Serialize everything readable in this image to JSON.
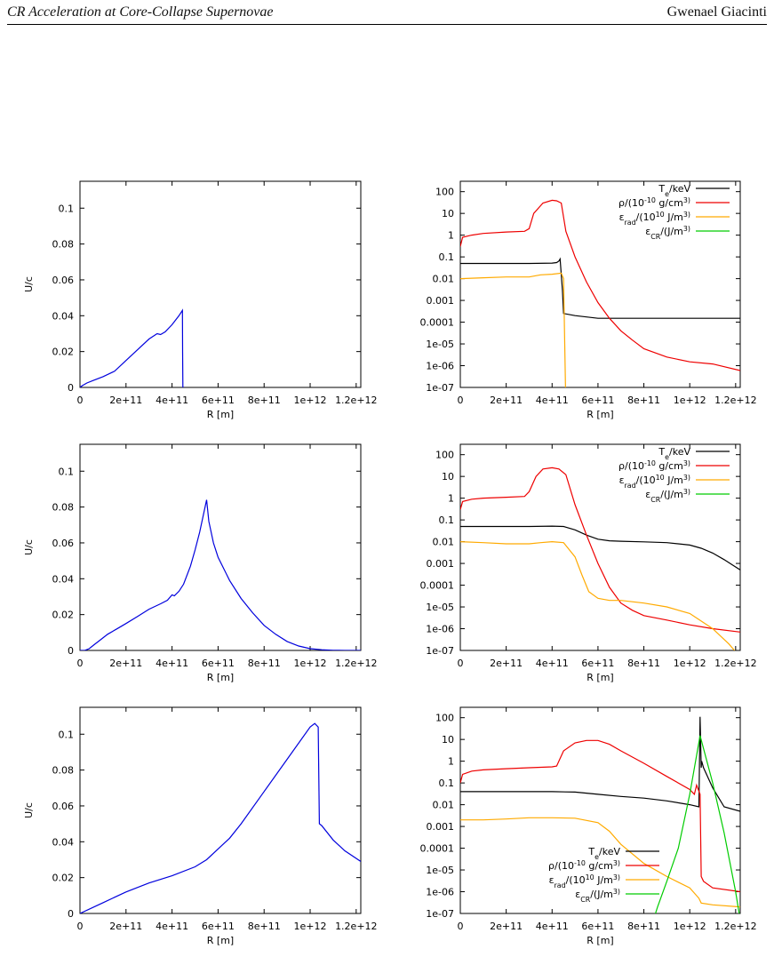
{
  "header": {
    "left": "CR Acceleration at Core-Collapse Supernovae",
    "right": "Gwenael Giacinti"
  },
  "chart_data": [
    {
      "type": "line",
      "xlabel": "R [m]",
      "ylabel": "U/c",
      "xlim": [
        0,
        1220000000000.0
      ],
      "ylim": [
        0,
        0.115
      ],
      "xticks": [
        "0",
        "2e+11",
        "4e+11",
        "6e+11",
        "8e+11",
        "1e+12",
        "1.2e+12"
      ],
      "yticks": [
        "0",
        "0.02",
        "0.04",
        "0.06",
        "0.08",
        "0.1"
      ],
      "series": [
        {
          "color": "#0000dd",
          "x": [
            0,
            10000000000.0,
            30000000000.0,
            60000000000.0,
            100000000000.0,
            150000000000.0,
            200000000000.0,
            250000000000.0,
            300000000000.0,
            335000000000.0,
            350000000000.0,
            370000000000.0,
            400000000000.0,
            430000000000.0,
            445000000000.0,
            446000000000.0,
            447000000000.0,
            450000000000.0
          ],
          "y": [
            0,
            0.001,
            0.0025,
            0.004,
            0.006,
            0.009,
            0.015,
            0.021,
            0.027,
            0.03,
            0.0295,
            0.031,
            0.035,
            0.04,
            0.043,
            0.02,
            0.0,
            0.0
          ]
        }
      ]
    },
    {
      "type": "line",
      "xlabel": "R [m]",
      "xlim": [
        0,
        1220000000000.0
      ],
      "yscale": "log",
      "ylim": [
        1e-07,
        300
      ],
      "xticks": [
        "0",
        "2e+11",
        "4e+11",
        "6e+11",
        "8e+11",
        "1e+12",
        "1.2e+12"
      ],
      "yticks": [
        "1e-07",
        "1e-06",
        "1e-05",
        "0.0001",
        "0.001",
        "0.01",
        "0.1",
        "1",
        "10",
        "100"
      ],
      "legend_position": "top-right",
      "series": [
        {
          "name": "T_e/keV",
          "color": "#000000",
          "x": [
            0,
            100000000000.0,
            200000000000.0,
            300000000000.0,
            400000000000.0,
            420000000000.0,
            430000000000.0,
            435000000000.0,
            445000000000.0,
            450000000000.0,
            500000000000.0,
            600000000000.0,
            800000000000.0,
            1000000000000.0,
            1220000000000.0
          ],
          "y": [
            0.05,
            0.05,
            0.05,
            0.05,
            0.052,
            0.055,
            0.065,
            0.08,
            0.003,
            0.00025,
            0.0002,
            0.00015,
            0.00015,
            0.00015,
            0.00015
          ]
        },
        {
          "name": "ρ/(10^-10 g/cm^3)",
          "color": "#ee0000",
          "x": [
            0,
            10000000000.0,
            50000000000.0,
            100000000000.0,
            200000000000.0,
            280000000000.0,
            300000000000.0,
            320000000000.0,
            360000000000.0,
            400000000000.0,
            420000000000.0,
            440000000000.0,
            460000000000.0,
            500000000000.0,
            550000000000.0,
            600000000000.0,
            650000000000.0,
            700000000000.0,
            750000000000.0,
            800000000000.0,
            900000000000.0,
            1000000000000.0,
            1100000000000.0,
            1220000000000.0
          ],
          "y": [
            0.3,
            0.8,
            1.0,
            1.2,
            1.4,
            1.5,
            2.0,
            10,
            30,
            40,
            38,
            30,
            1.5,
            0.1,
            0.007,
            0.0008,
            0.00015,
            4e-05,
            1.5e-05,
            6e-06,
            2.5e-06,
            1.5e-06,
            1.2e-06,
            6e-07
          ]
        },
        {
          "name": "ε_rad/(10^10 J/m^3)",
          "color": "#ffaa00",
          "x": [
            0,
            100000000000.0,
            200000000000.0,
            300000000000.0,
            350000000000.0,
            400000000000.0,
            440000000000.0,
            450000000000.0,
            455000000000.0,
            460000000000.0
          ],
          "y": [
            0.01,
            0.011,
            0.012,
            0.012,
            0.015,
            0.016,
            0.018,
            0.01,
            1e-05,
            1e-08
          ]
        },
        {
          "name": "ε_CR/(J/m^3)",
          "color": "#00cc00",
          "x": [],
          "y": []
        }
      ]
    },
    {
      "type": "line",
      "xlabel": "R [m]",
      "ylabel": "U/c",
      "xlim": [
        0,
        1220000000000.0
      ],
      "ylim": [
        0,
        0.115
      ],
      "xticks": [
        "0",
        "2e+11",
        "4e+11",
        "6e+11",
        "8e+11",
        "1e+12",
        "1.2e+12"
      ],
      "yticks": [
        "0",
        "0.02",
        "0.04",
        "0.06",
        "0.08",
        "0.1"
      ],
      "series": [
        {
          "color": "#0000dd",
          "x": [
            0,
            20000000000.0,
            40000000000.0,
            60000000000.0,
            80000000000.0,
            120000000000.0,
            160000000000.0,
            200000000000.0,
            250000000000.0,
            300000000000.0,
            350000000000.0,
            380000000000.0,
            400000000000.0,
            410000000000.0,
            430000000000.0,
            450000000000.0,
            480000000000.0,
            500000000000.0,
            520000000000.0,
            540000000000.0,
            550000000000.0,
            560000000000.0,
            580000000000.0,
            600000000000.0,
            650000000000.0,
            700000000000.0,
            750000000000.0,
            800000000000.0,
            850000000000.0,
            900000000000.0,
            950000000000.0,
            1000000000000.0,
            1050000000000.0,
            1100000000000.0,
            1150000000000.0,
            1220000000000.0
          ],
          "y": [
            0,
            0,
            0.001,
            0.003,
            0.005,
            0.009,
            0.012,
            0.015,
            0.019,
            0.023,
            0.026,
            0.028,
            0.031,
            0.0305,
            0.033,
            0.037,
            0.047,
            0.056,
            0.066,
            0.078,
            0.084,
            0.072,
            0.06,
            0.052,
            0.039,
            0.029,
            0.021,
            0.014,
            0.009,
            0.005,
            0.0025,
            0.001,
            0.0004,
            0.0001,
            0.0,
            0.0
          ]
        }
      ]
    },
    {
      "type": "line",
      "xlabel": "R [m]",
      "xlim": [
        0,
        1220000000000.0
      ],
      "yscale": "log",
      "ylim": [
        1e-07,
        300
      ],
      "xticks": [
        "0",
        "2e+11",
        "4e+11",
        "6e+11",
        "8e+11",
        "1e+12",
        "1.2e+12"
      ],
      "yticks": [
        "1e-07",
        "1e-06",
        "1e-05",
        "0.0001",
        "0.001",
        "0.01",
        "0.1",
        "1",
        "10",
        "100"
      ],
      "legend_position": "top-right",
      "series": [
        {
          "name": "T_e/keV",
          "color": "#000000",
          "x": [
            0,
            100000000000.0,
            200000000000.0,
            300000000000.0,
            400000000000.0,
            450000000000.0,
            500000000000.0,
            550000000000.0,
            600000000000.0,
            650000000000.0,
            700000000000.0,
            800000000000.0,
            900000000000.0,
            1000000000000.0,
            1050000000000.0,
            1100000000000.0,
            1150000000000.0,
            1220000000000.0
          ],
          "y": [
            0.05,
            0.05,
            0.05,
            0.05,
            0.052,
            0.05,
            0.035,
            0.02,
            0.013,
            0.011,
            0.0105,
            0.0098,
            0.009,
            0.007,
            0.005,
            0.003,
            0.0015,
            0.0005
          ]
        },
        {
          "name": "ρ/(10^-10 g/cm^3)",
          "color": "#ee0000",
          "x": [
            0,
            10000000000.0,
            50000000000.0,
            100000000000.0,
            200000000000.0,
            280000000000.0,
            300000000000.0,
            330000000000.0,
            360000000000.0,
            400000000000.0,
            430000000000.0,
            460000000000.0,
            500000000000.0,
            550000000000.0,
            600000000000.0,
            650000000000.0,
            700000000000.0,
            750000000000.0,
            800000000000.0,
            900000000000.0,
            1000000000000.0,
            1100000000000.0,
            1220000000000.0
          ],
          "y": [
            0.3,
            0.7,
            0.9,
            1.0,
            1.1,
            1.2,
            2.0,
            10,
            22,
            25,
            22,
            12,
            0.5,
            0.02,
            0.001,
            8e-05,
            1.5e-05,
            7e-06,
            4e-06,
            2.5e-06,
            1.5e-06,
            1e-06,
            7e-07
          ]
        },
        {
          "name": "ε_rad/(10^10 J/m^3)",
          "color": "#ffaa00",
          "x": [
            0,
            100000000000.0,
            200000000000.0,
            300000000000.0,
            350000000000.0,
            400000000000.0,
            450000000000.0,
            500000000000.0,
            530000000000.0,
            560000000000.0,
            600000000000.0,
            650000000000.0,
            700000000000.0,
            800000000000.0,
            900000000000.0,
            1000000000000.0,
            1100000000000.0,
            1170000000000.0,
            1220000000000.0
          ],
          "y": [
            0.01,
            0.009,
            0.008,
            0.008,
            0.009,
            0.01,
            0.009,
            0.002,
            0.0003,
            5e-05,
            2.5e-05,
            2e-05,
            2e-05,
            1.5e-05,
            1e-05,
            5e-06,
            1e-06,
            2e-07,
            5e-08
          ]
        },
        {
          "name": "ε_CR/(J/m^3)",
          "color": "#00cc00",
          "x": [],
          "y": []
        }
      ]
    },
    {
      "type": "line",
      "xlabel": "R [m]",
      "ylabel": "U/c",
      "xlim": [
        0,
        1220000000000.0
      ],
      "ylim": [
        0,
        0.115
      ],
      "xticks": [
        "0",
        "2e+11",
        "4e+11",
        "6e+11",
        "8e+11",
        "1e+12",
        "1.2e+12"
      ],
      "yticks": [
        "0",
        "0.02",
        "0.04",
        "0.06",
        "0.08",
        "0.1"
      ],
      "series": [
        {
          "color": "#0000dd",
          "x": [
            0,
            100000000000.0,
            200000000000.0,
            300000000000.0,
            400000000000.0,
            500000000000.0,
            550000000000.0,
            600000000000.0,
            650000000000.0,
            700000000000.0,
            800000000000.0,
            900000000000.0,
            1000000000000.0,
            1020000000000.0,
            1035000000000.0,
            1040000000000.0,
            1050000000000.0,
            1100000000000.0,
            1150000000000.0,
            1220000000000.0
          ],
          "y": [
            0,
            0.006,
            0.012,
            0.017,
            0.021,
            0.026,
            0.03,
            0.036,
            0.042,
            0.05,
            0.068,
            0.086,
            0.104,
            0.106,
            0.104,
            0.05,
            0.049,
            0.041,
            0.035,
            0.029
          ]
        }
      ]
    },
    {
      "type": "line",
      "xlabel": "R [m]",
      "xlim": [
        0,
        1220000000000.0
      ],
      "yscale": "log",
      "ylim": [
        1e-07,
        300
      ],
      "xticks": [
        "0",
        "2e+11",
        "4e+11",
        "6e+11",
        "8e+11",
        "1e+12",
        "1.2e+12"
      ],
      "yticks": [
        "1e-07",
        "1e-06",
        "1e-05",
        "0.0001",
        "0.001",
        "0.01",
        "0.1",
        "1",
        "10",
        "100"
      ],
      "legend_position": "bottom-center",
      "series": [
        {
          "name": "T_e/keV",
          "color": "#000000",
          "x": [
            0,
            200000000000.0,
            400000000000.0,
            500000000000.0,
            600000000000.0,
            700000000000.0,
            800000000000.0,
            900000000000.0,
            1000000000000.0,
            1040000000000.0,
            1045000000000.0,
            1050000000000.0,
            1052000000000.0,
            1060000000000.0,
            1100000000000.0,
            1150000000000.0,
            1220000000000.0
          ],
          "y": [
            0.04,
            0.04,
            0.04,
            0.038,
            0.03,
            0.024,
            0.02,
            0.015,
            0.01,
            0.008,
            110,
            0.5,
            1.0,
            0.5,
            0.06,
            0.008,
            0.005
          ]
        },
        {
          "name": "ρ/(10^-10 g/cm^3)",
          "color": "#ee0000",
          "x": [
            0,
            10000000000.0,
            50000000000.0,
            100000000000.0,
            200000000000.0,
            300000000000.0,
            400000000000.0,
            420000000000.0,
            450000000000.0,
            500000000000.0,
            550000000000.0,
            600000000000.0,
            650000000000.0,
            700000000000.0,
            800000000000.0,
            900000000000.0,
            1000000000000.0,
            1020000000000.0,
            1030000000000.0,
            1045000000000.0,
            1050000000000.0,
            1060000000000.0,
            1100000000000.0,
            1220000000000.0
          ],
          "y": [
            0.1,
            0.25,
            0.35,
            0.4,
            0.45,
            0.5,
            0.55,
            0.6,
            3.0,
            7,
            9,
            9,
            6,
            3,
            0.8,
            0.2,
            0.05,
            0.03,
            0.08,
            0.03,
            5e-06,
            3e-06,
            1.5e-06,
            1e-06
          ]
        },
        {
          "name": "ε_rad/(10^10 J/m^3)",
          "color": "#ffaa00",
          "x": [
            0,
            100000000000.0,
            200000000000.0,
            300000000000.0,
            400000000000.0,
            500000000000.0,
            600000000000.0,
            650000000000.0,
            700000000000.0,
            800000000000.0,
            900000000000.0,
            1000000000000.0,
            1040000000000.0,
            1050000000000.0,
            1100000000000.0,
            1220000000000.0
          ],
          "y": [
            0.002,
            0.002,
            0.0022,
            0.0025,
            0.0025,
            0.0024,
            0.0015,
            0.0006,
            0.00015,
            2e-05,
            5e-06,
            1.5e-06,
            5e-07,
            3e-07,
            2.5e-07,
            2e-07
          ]
        },
        {
          "name": "ε_CR/(J/m^3)",
          "color": "#00cc00",
          "x": [
            820000000000.0,
            860000000000.0,
            900000000000.0,
            950000000000.0,
            1000000000000.0,
            1045000000000.0,
            1100000000000.0,
            1150000000000.0,
            1200000000000.0,
            1220000000000.0
          ],
          "y": [
            1e-08,
            2e-07,
            3e-06,
            0.0001,
            0.03,
            15,
            0.1,
            0.0005,
            1e-06,
            5e-08
          ]
        }
      ]
    }
  ]
}
